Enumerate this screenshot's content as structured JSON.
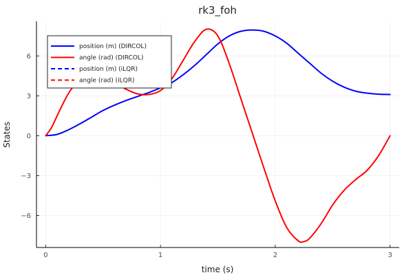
{
  "chart_data": {
    "type": "line",
    "title": "rk3_foh",
    "xlabel": "time (s)",
    "ylabel": "States",
    "xlim": [
      -0.08,
      3.08
    ],
    "ylim": [
      -8.4,
      8.6
    ],
    "xticks": [
      0,
      1,
      2,
      3
    ],
    "xtick_labels": [
      "0",
      "1",
      "2",
      "3"
    ],
    "yticks": [
      -6,
      -3,
      0,
      3,
      6
    ],
    "ytick_labels": [
      "−6",
      "−3",
      "0",
      "3",
      "6"
    ],
    "grid": true,
    "legend_position": "top-left",
    "series": [
      {
        "name": "position (m) (DIRCOL)",
        "color": "#0000ff",
        "dash": "solid",
        "x": [
          0,
          0.1,
          0.2,
          0.3,
          0.4,
          0.5,
          0.6,
          0.7,
          0.8,
          0.9,
          1.0,
          1.1,
          1.2,
          1.3,
          1.4,
          1.5,
          1.6,
          1.7,
          1.8,
          1.9,
          2.0,
          2.1,
          2.2,
          2.3,
          2.4,
          2.5,
          2.6,
          2.7,
          2.8,
          2.9,
          3.0
        ],
        "y": [
          0,
          0.1,
          0.45,
          0.9,
          1.4,
          1.9,
          2.3,
          2.65,
          2.95,
          3.25,
          3.6,
          4.0,
          4.6,
          5.3,
          6.1,
          6.9,
          7.5,
          7.85,
          7.95,
          7.85,
          7.5,
          6.95,
          6.2,
          5.45,
          4.7,
          4.1,
          3.65,
          3.35,
          3.2,
          3.12,
          3.1
        ]
      },
      {
        "name": "angle (rad) (DIRCOL)",
        "color": "#ff0000",
        "dash": "solid",
        "x": [
          0,
          0.05,
          0.1,
          0.15,
          0.2,
          0.25,
          0.3,
          0.4,
          0.5,
          0.6,
          0.7,
          0.8,
          0.9,
          1.0,
          1.1,
          1.2,
          1.3,
          1.4,
          1.5,
          1.6,
          1.7,
          1.8,
          1.9,
          2.0,
          2.1,
          2.2,
          2.25,
          2.3,
          2.4,
          2.5,
          2.6,
          2.7,
          2.8,
          2.9,
          3.0
        ],
        "y": [
          0,
          0.6,
          1.5,
          2.4,
          3.2,
          3.8,
          4.2,
          4.5,
          4.4,
          4.0,
          3.5,
          3.15,
          3.1,
          3.4,
          4.3,
          5.7,
          7.1,
          8.0,
          7.5,
          5.4,
          2.8,
          0.2,
          -2.4,
          -4.9,
          -6.9,
          -7.9,
          -7.95,
          -7.7,
          -6.6,
          -5.2,
          -4.1,
          -3.3,
          -2.6,
          -1.5,
          0
        ]
      },
      {
        "name": "position (m) (iLQR)",
        "color": "#0000ff",
        "dash": "dashed",
        "x": [],
        "y": []
      },
      {
        "name": "angle (rad) (iLQR)",
        "color": "#ff0000",
        "dash": "dashed",
        "x": [],
        "y": []
      }
    ]
  }
}
